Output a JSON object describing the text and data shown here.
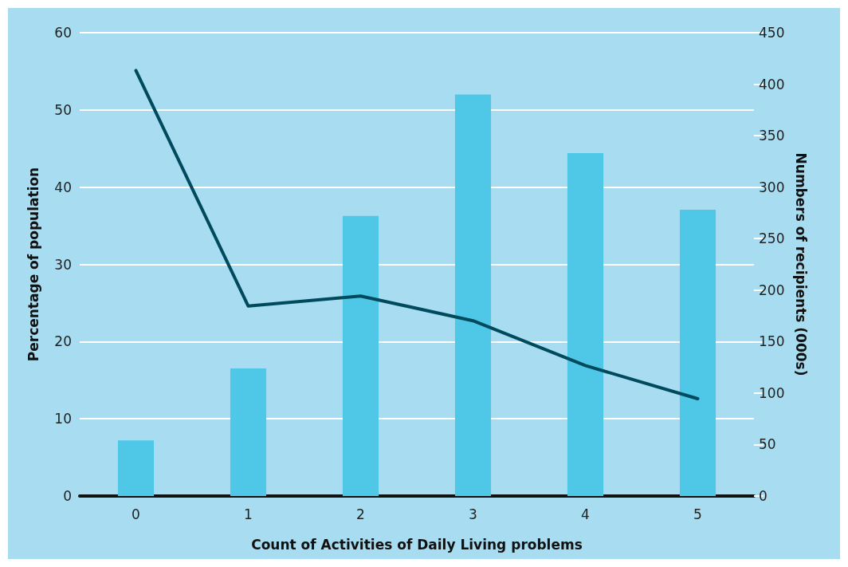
{
  "chart_data": {
    "type": "bar",
    "xlabel": "Count of Activities of Daily Living problems",
    "ylabel": "Percentage of population",
    "y2label": "Numbers of recipients (000s)",
    "categories": [
      "0",
      "1",
      "2",
      "3",
      "4",
      "5"
    ],
    "series": [
      {
        "axis": "y2",
        "color": "#4fc8e8",
        "values": [
          54,
          124,
          272,
          390,
          333,
          278
        ]
      },
      {
        "type": "line",
        "axis": "y",
        "color": "#004a5e",
        "values": [
          55.1,
          24.6,
          25.9,
          22.7,
          16.9,
          12.6
        ]
      }
    ],
    "ylim": [
      0,
      60
    ],
    "yticks": [
      0,
      10,
      20,
      30,
      40,
      50,
      60
    ],
    "y2lim": [
      0,
      450
    ],
    "y2ticks": [
      0,
      50,
      100,
      150,
      200,
      250,
      300,
      350,
      400,
      450
    ],
    "grid": "y",
    "marker": "none",
    "line_style": "solid"
  }
}
